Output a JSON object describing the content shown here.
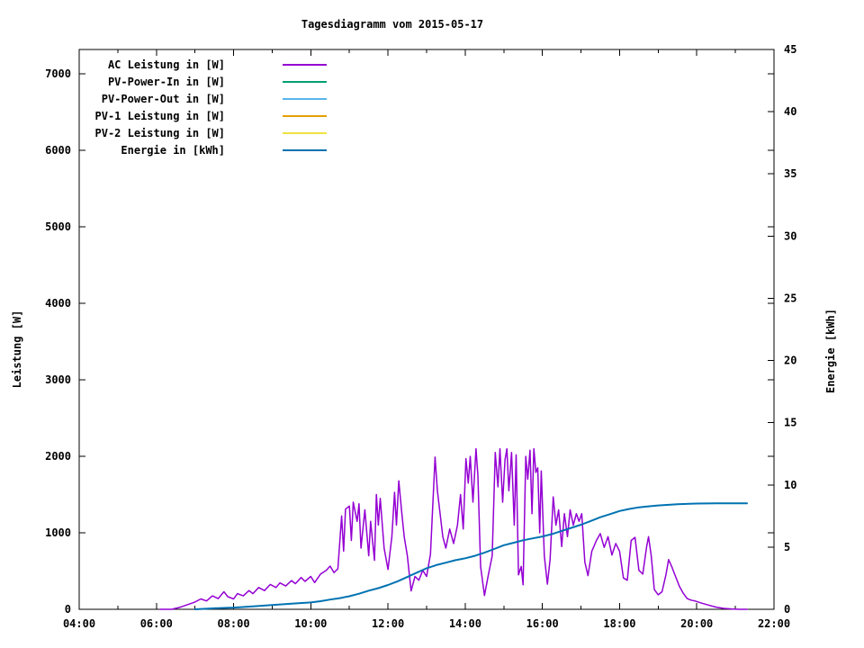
{
  "chart_data": {
    "type": "line",
    "title": "Tagesdiagramm vom 2015-05-17",
    "ylabel": "Leistung [W]",
    "y2label": "Energie [kWh]",
    "xlim_hours": [
      4,
      22
    ],
    "ylim": [
      0,
      7320
    ],
    "y2lim": [
      0,
      45
    ],
    "grid": false,
    "legend_position": "top-left-inside",
    "x_ticks": [
      {
        "h": 4,
        "label": "04:00"
      },
      {
        "h": 6,
        "label": "06:00"
      },
      {
        "h": 8,
        "label": "08:00"
      },
      {
        "h": 10,
        "label": "10:00"
      },
      {
        "h": 12,
        "label": "12:00"
      },
      {
        "h": 14,
        "label": "14:00"
      },
      {
        "h": 16,
        "label": "16:00"
      },
      {
        "h": 18,
        "label": "18:00"
      },
      {
        "h": 20,
        "label": "20:00"
      },
      {
        "h": 22,
        "label": "22:00"
      }
    ],
    "x_minor_ticks": [
      5,
      7,
      9,
      11,
      13,
      15,
      17,
      19,
      21
    ],
    "y_ticks": [
      0,
      1000,
      2000,
      3000,
      4000,
      5000,
      6000,
      7000
    ],
    "y2_ticks": [
      0,
      5,
      10,
      15,
      20,
      25,
      30,
      35,
      40,
      45
    ],
    "series": [
      {
        "name": "AC Leistung in [W]",
        "color": "#9400d3",
        "yaxis": "y1",
        "points": [
          [
            6.1,
            0
          ],
          [
            6.4,
            0
          ],
          [
            6.6,
            25
          ],
          [
            6.8,
            60
          ],
          [
            7.0,
            95
          ],
          [
            7.15,
            135
          ],
          [
            7.3,
            110
          ],
          [
            7.45,
            175
          ],
          [
            7.6,
            140
          ],
          [
            7.75,
            230
          ],
          [
            7.85,
            165
          ],
          [
            8.0,
            135
          ],
          [
            8.1,
            205
          ],
          [
            8.25,
            175
          ],
          [
            8.4,
            245
          ],
          [
            8.5,
            205
          ],
          [
            8.65,
            285
          ],
          [
            8.8,
            245
          ],
          [
            8.95,
            325
          ],
          [
            9.1,
            285
          ],
          [
            9.2,
            345
          ],
          [
            9.35,
            305
          ],
          [
            9.5,
            375
          ],
          [
            9.6,
            335
          ],
          [
            9.75,
            415
          ],
          [
            9.85,
            365
          ],
          [
            10.0,
            430
          ],
          [
            10.1,
            350
          ],
          [
            10.25,
            460
          ],
          [
            10.4,
            510
          ],
          [
            10.5,
            565
          ],
          [
            10.6,
            480
          ],
          [
            10.7,
            530
          ],
          [
            10.8,
            1220
          ],
          [
            10.85,
            760
          ],
          [
            10.9,
            1310
          ],
          [
            11.0,
            1350
          ],
          [
            11.05,
            900
          ],
          [
            11.1,
            1400
          ],
          [
            11.2,
            1150
          ],
          [
            11.25,
            1380
          ],
          [
            11.3,
            800
          ],
          [
            11.4,
            1300
          ],
          [
            11.5,
            700
          ],
          [
            11.55,
            1150
          ],
          [
            11.65,
            640
          ],
          [
            11.7,
            1500
          ],
          [
            11.75,
            1100
          ],
          [
            11.8,
            1450
          ],
          [
            11.9,
            800
          ],
          [
            12.0,
            520
          ],
          [
            12.1,
            950
          ],
          [
            12.17,
            1530
          ],
          [
            12.22,
            1100
          ],
          [
            12.28,
            1680
          ],
          [
            12.35,
            1300
          ],
          [
            12.42,
            950
          ],
          [
            12.5,
            700
          ],
          [
            12.6,
            240
          ],
          [
            12.7,
            430
          ],
          [
            12.8,
            380
          ],
          [
            12.9,
            510
          ],
          [
            13.0,
            430
          ],
          [
            13.1,
            720
          ],
          [
            13.22,
            1990
          ],
          [
            13.28,
            1550
          ],
          [
            13.35,
            1250
          ],
          [
            13.42,
            950
          ],
          [
            13.5,
            800
          ],
          [
            13.6,
            1050
          ],
          [
            13.7,
            860
          ],
          [
            13.8,
            1100
          ],
          [
            13.88,
            1500
          ],
          [
            13.95,
            1050
          ],
          [
            14.02,
            1970
          ],
          [
            14.08,
            1650
          ],
          [
            14.13,
            2000
          ],
          [
            14.2,
            1400
          ],
          [
            14.28,
            2100
          ],
          [
            14.33,
            1750
          ],
          [
            14.4,
            560
          ],
          [
            14.5,
            180
          ],
          [
            14.6,
            450
          ],
          [
            14.7,
            700
          ],
          [
            14.78,
            2050
          ],
          [
            14.85,
            1600
          ],
          [
            14.9,
            2100
          ],
          [
            14.97,
            1400
          ],
          [
            15.03,
            1950
          ],
          [
            15.08,
            2100
          ],
          [
            15.13,
            1550
          ],
          [
            15.2,
            2050
          ],
          [
            15.27,
            1100
          ],
          [
            15.32,
            2020
          ],
          [
            15.38,
            450
          ],
          [
            15.45,
            560
          ],
          [
            15.5,
            320
          ],
          [
            15.57,
            2000
          ],
          [
            15.62,
            1700
          ],
          [
            15.68,
            2080
          ],
          [
            15.73,
            1250
          ],
          [
            15.78,
            2100
          ],
          [
            15.83,
            1790
          ],
          [
            15.88,
            1850
          ],
          [
            15.93,
            1000
          ],
          [
            15.97,
            1810
          ],
          [
            16.05,
            700
          ],
          [
            16.13,
            330
          ],
          [
            16.2,
            650
          ],
          [
            16.28,
            1470
          ],
          [
            16.35,
            1100
          ],
          [
            16.42,
            1300
          ],
          [
            16.5,
            820
          ],
          [
            16.57,
            1250
          ],
          [
            16.65,
            950
          ],
          [
            16.72,
            1300
          ],
          [
            16.8,
            1100
          ],
          [
            16.88,
            1250
          ],
          [
            16.95,
            1150
          ],
          [
            17.02,
            1250
          ],
          [
            17.1,
            620
          ],
          [
            17.18,
            440
          ],
          [
            17.28,
            760
          ],
          [
            17.4,
            900
          ],
          [
            17.5,
            990
          ],
          [
            17.6,
            810
          ],
          [
            17.7,
            950
          ],
          [
            17.8,
            710
          ],
          [
            17.9,
            860
          ],
          [
            18.0,
            760
          ],
          [
            18.1,
            410
          ],
          [
            18.2,
            380
          ],
          [
            18.3,
            900
          ],
          [
            18.4,
            940
          ],
          [
            18.5,
            510
          ],
          [
            18.6,
            460
          ],
          [
            18.7,
            820
          ],
          [
            18.75,
            950
          ],
          [
            18.82,
            700
          ],
          [
            18.9,
            260
          ],
          [
            19.0,
            190
          ],
          [
            19.1,
            230
          ],
          [
            19.2,
            450
          ],
          [
            19.27,
            650
          ],
          [
            19.35,
            560
          ],
          [
            19.45,
            430
          ],
          [
            19.55,
            300
          ],
          [
            19.65,
            210
          ],
          [
            19.75,
            140
          ],
          [
            19.85,
            120
          ],
          [
            19.95,
            110
          ],
          [
            20.1,
            85
          ],
          [
            20.3,
            55
          ],
          [
            20.5,
            28
          ],
          [
            20.7,
            12
          ],
          [
            20.9,
            5
          ],
          [
            21.1,
            0
          ],
          [
            21.3,
            0
          ]
        ]
      },
      {
        "name": "PV-Power-In in [W]",
        "color": "#009e73",
        "yaxis": "y1",
        "points": []
      },
      {
        "name": "PV-Power-Out in [W]",
        "color": "#56b4e9",
        "yaxis": "y1",
        "points": []
      },
      {
        "name": "PV-1 Leistung in [W]",
        "color": "#e69f00",
        "yaxis": "y1",
        "points": []
      },
      {
        "name": "PV-2 Leistung in [W]",
        "color": "#f0e442",
        "yaxis": "y1",
        "points": []
      },
      {
        "name": "Energie in [kWh]",
        "color": "#0072b2",
        "yaxis": "y2",
        "points": [
          [
            7.0,
            0.0
          ],
          [
            7.5,
            0.08
          ],
          [
            8.0,
            0.14
          ],
          [
            8.5,
            0.24
          ],
          [
            9.0,
            0.34
          ],
          [
            9.5,
            0.45
          ],
          [
            10.0,
            0.55
          ],
          [
            10.25,
            0.65
          ],
          [
            10.5,
            0.78
          ],
          [
            10.75,
            0.9
          ],
          [
            11.0,
            1.05
          ],
          [
            11.25,
            1.25
          ],
          [
            11.5,
            1.5
          ],
          [
            11.75,
            1.7
          ],
          [
            12.0,
            1.95
          ],
          [
            12.25,
            2.25
          ],
          [
            12.5,
            2.6
          ],
          [
            12.75,
            2.95
          ],
          [
            13.0,
            3.3
          ],
          [
            13.25,
            3.55
          ],
          [
            13.5,
            3.75
          ],
          [
            13.75,
            3.95
          ],
          [
            14.0,
            4.1
          ],
          [
            14.25,
            4.3
          ],
          [
            14.5,
            4.55
          ],
          [
            14.75,
            4.85
          ],
          [
            15.0,
            5.15
          ],
          [
            15.25,
            5.35
          ],
          [
            15.5,
            5.55
          ],
          [
            15.75,
            5.7
          ],
          [
            16.0,
            5.85
          ],
          [
            16.25,
            6.05
          ],
          [
            16.5,
            6.3
          ],
          [
            16.75,
            6.55
          ],
          [
            17.0,
            6.8
          ],
          [
            17.25,
            7.1
          ],
          [
            17.5,
            7.4
          ],
          [
            17.75,
            7.65
          ],
          [
            18.0,
            7.9
          ],
          [
            18.25,
            8.07
          ],
          [
            18.5,
            8.2
          ],
          [
            18.75,
            8.28
          ],
          [
            19.0,
            8.35
          ],
          [
            19.5,
            8.45
          ],
          [
            20.0,
            8.5
          ],
          [
            20.5,
            8.52
          ],
          [
            21.0,
            8.52
          ],
          [
            21.3,
            8.52
          ]
        ]
      }
    ]
  }
}
